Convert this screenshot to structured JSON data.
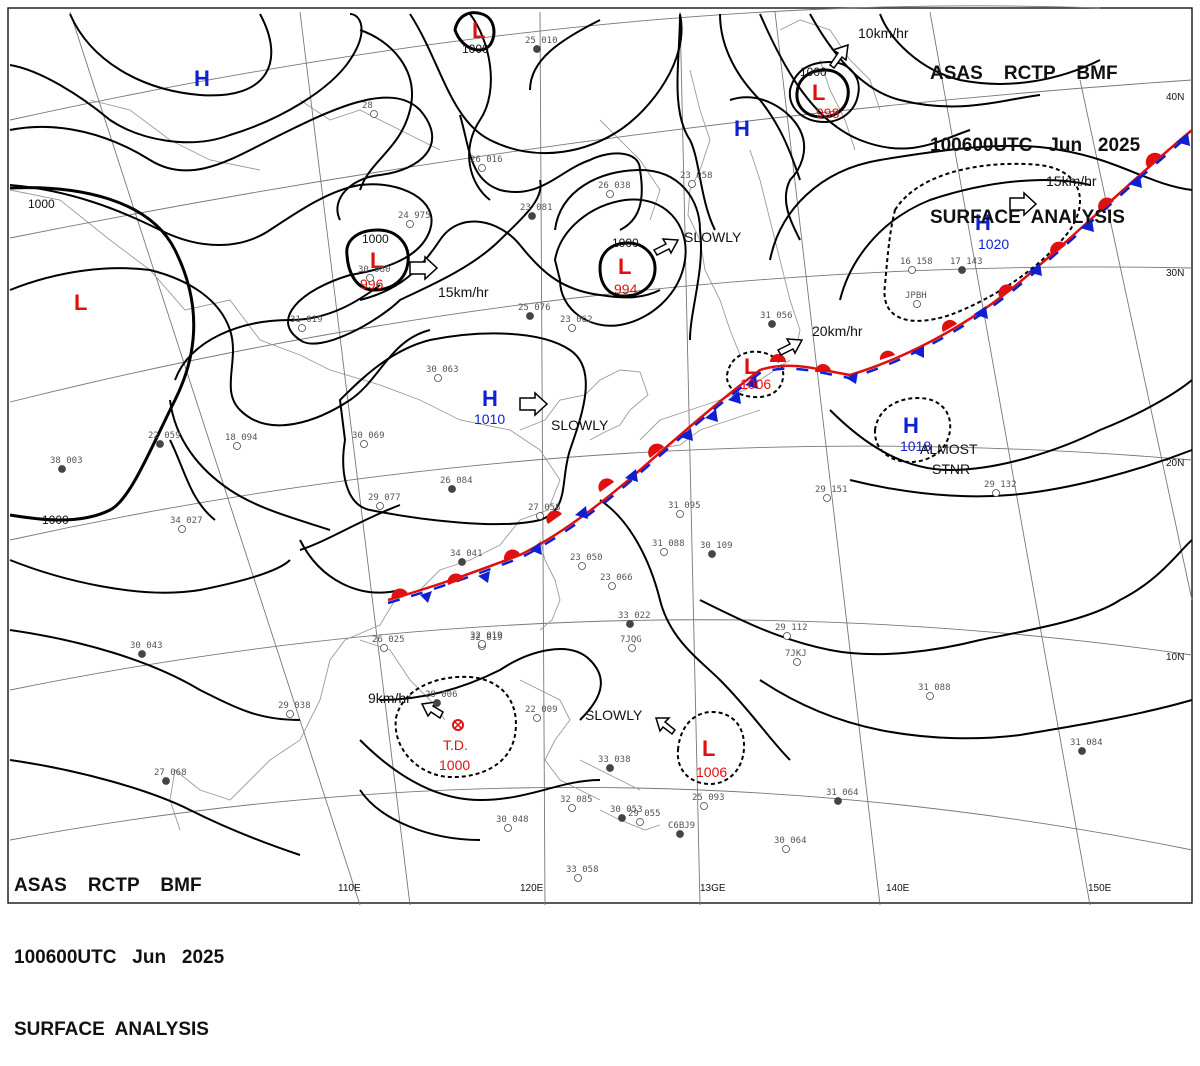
{
  "header": {
    "line1": "ASAS    RCTP    BMF",
    "line2": "100600UTC   Jun   2025",
    "line3": "SURFACE  ANALYSIS"
  },
  "graticule": {
    "lon_labels": [
      "110E",
      "120E",
      "13GE",
      "140E",
      "150E"
    ],
    "lat_labels": [
      "40N",
      "30N",
      "20N",
      "10N"
    ]
  },
  "isobar_labels": [
    "1000",
    "1000",
    "1000",
    "1000",
    "1000",
    "1000"
  ],
  "highs": [
    {
      "letter": "H",
      "value": ""
    },
    {
      "letter": "H",
      "value": ""
    },
    {
      "letter": "H",
      "value": "1010"
    },
    {
      "letter": "H",
      "value": "1020"
    },
    {
      "letter": "H",
      "value": "1018"
    }
  ],
  "lows": [
    {
      "letter": "L",
      "value": ""
    },
    {
      "letter": "L",
      "value": "996"
    },
    {
      "letter": "L",
      "value": "994"
    },
    {
      "letter": "L",
      "value": "998"
    },
    {
      "letter": "L",
      "value": "1006"
    },
    {
      "letter": "L",
      "value": "1006"
    },
    {
      "letter": "L",
      "value": ""
    }
  ],
  "tropical_depression": {
    "label": "T.D.",
    "value": "1000"
  },
  "motions": {
    "m1": "15km/hr",
    "m2": "SLOWLY",
    "m3": "SLOWLY",
    "m4": "10km/hr",
    "m5": "15km/hr",
    "m6": "20km/hr",
    "m7": "9km/hr",
    "m8": "SLOWLY",
    "m9": "ALMOST",
    "m10": "STNR"
  },
  "station_samples": [
    "25 010",
    "28",
    "26 016",
    "23 081",
    "26 038",
    "23 058",
    "31 056",
    "24 975",
    "30 980",
    "25 076",
    "23 062",
    "30 069",
    "38 003",
    "34 027",
    "31 019",
    "22 059",
    "18 094",
    "30 063",
    "26 084",
    "29 077",
    "27 058",
    "34 041",
    "31 095",
    "31 088",
    "30 109",
    "23 050",
    "23 066",
    "33 022",
    "29 112",
    "32 019",
    "30 043",
    "26 025",
    "29 038",
    "28 006",
    "32 019",
    "22 009",
    "33 038",
    "30 048",
    "32 085",
    "30 053",
    "29 055",
    "25 093",
    "31 064",
    "30 064",
    "31 088",
    "31 084",
    "29 132",
    "29 151",
    "27 068",
    "33 058",
    "16 158",
    "17 143",
    "7JQG",
    "7JKJ",
    "C6BJ9",
    "JPBH"
  ],
  "colors": {
    "isobar": "#000000",
    "graticule": "#777777",
    "coast": "#9a9a9a",
    "high": "#1020d0",
    "low": "#e01010",
    "front_warm": "#e01010",
    "front_cold": "#1020d0"
  }
}
